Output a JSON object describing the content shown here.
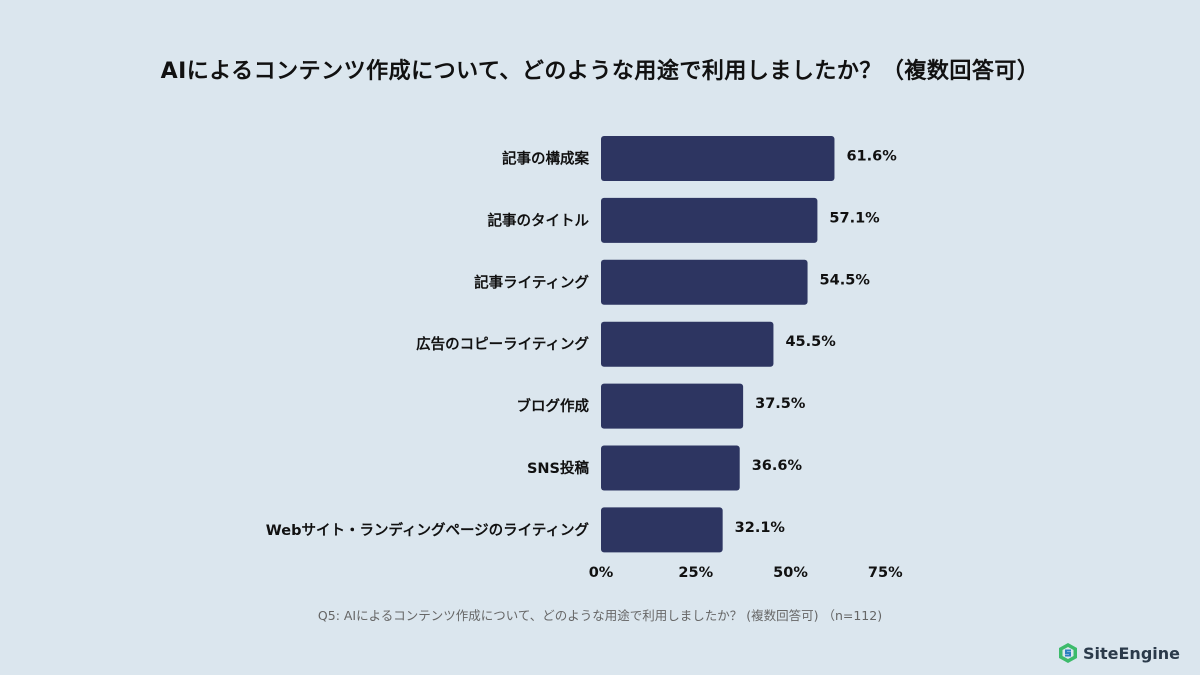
{
  "title": "AIによるコンテンツ作成について、どのような用途で利用しましたか？（複数回答可）",
  "footnote": "Q5: AIによるコンテンツ作成について、どのような用途で利用しましたか？ (複数回答可) （n=112)",
  "brand": "SiteEngine",
  "colors": {
    "bar": "#2d3561",
    "background": "#dbe6ee",
    "brand_green": "#3dbb6b",
    "brand_blue": "#2d7fc1"
  },
  "chart_data": {
    "type": "bar",
    "orientation": "horizontal",
    "categories": [
      "記事の構成案",
      "記事のタイトル",
      "記事ライティング",
      "広告のコピーライティング",
      "ブログ作成",
      "SNS投稿",
      "Webサイト・ランディングページのライティング"
    ],
    "values": [
      61.6,
      57.1,
      54.5,
      45.5,
      37.5,
      36.6,
      32.1
    ],
    "value_labels": [
      "61.6%",
      "57.1%",
      "54.5%",
      "45.5%",
      "37.5%",
      "36.6%",
      "32.1%"
    ],
    "xlim": [
      0,
      75
    ],
    "xticks": [
      0,
      25,
      50,
      75
    ],
    "xtick_labels": [
      "0%",
      "25%",
      "50%",
      "75%"
    ],
    "grid": false,
    "legend": "none"
  }
}
